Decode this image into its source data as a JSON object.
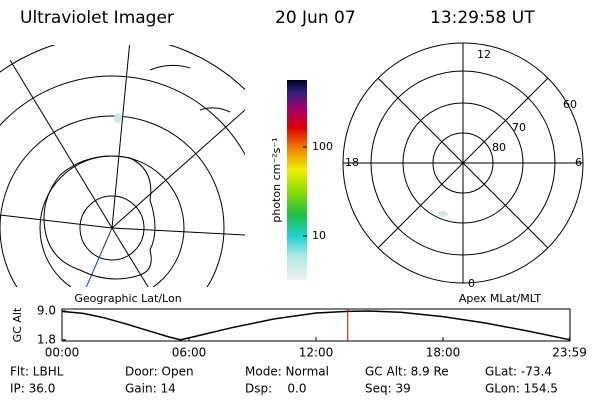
{
  "header": {
    "title": "Ultraviolet Imager",
    "date": "20 Jun 07",
    "time": "13:29:58 UT"
  },
  "left_map": {
    "label": "Geographic Lat/Lon"
  },
  "right_map": {
    "label": "Apex MLat/MLT",
    "mlt_labels": [
      "12",
      "18",
      "6",
      "0"
    ],
    "lat_labels": [
      "60",
      "70",
      "80"
    ]
  },
  "colorbar": {
    "label": "photon cm⁻²s⁻¹",
    "scale": "log",
    "ylim": [
      3.2,
      566
    ],
    "ticks": [
      10,
      100
    ]
  },
  "chart_data": {
    "type": "line",
    "ylabel": "GC Alt",
    "x": [
      0,
      1,
      2,
      3,
      4,
      5,
      5.6,
      6.5,
      8,
      10,
      12,
      13.5,
      14.5,
      16,
      18,
      20,
      22,
      24
    ],
    "values": [
      8.9,
      8.4,
      7.3,
      5.8,
      4.2,
      2.6,
      1.8,
      2.9,
      4.8,
      7.0,
      8.5,
      8.9,
      9.0,
      8.7,
      7.6,
      6.0,
      4.0,
      1.8
    ],
    "color": "#000000",
    "marker_x": 13.5,
    "marker_color": "#cc0000",
    "xlim": [
      0,
      24
    ],
    "ylim": [
      1.5,
      9.5
    ],
    "xticks": [
      {
        "value": 0,
        "label": "00:00"
      },
      {
        "value": 6,
        "label": "06:00"
      },
      {
        "value": 12,
        "label": "12:00"
      },
      {
        "value": 18,
        "label": "18:00"
      },
      {
        "value": 23.98,
        "label": "23:59"
      }
    ],
    "yticks": [
      {
        "value": 1.8,
        "label": "1.8"
      },
      {
        "value": 9,
        "label": "9.0"
      }
    ]
  },
  "footer": [
    [
      "Flt: LBHL",
      "Door: Open",
      "Mode: Normal",
      "GC Alt: 8.9 Re",
      "GLat: -73.4"
    ],
    [
      "IP: 36.0",
      "Gain: 14",
      "Dsp:    0.0",
      "Seq: 39",
      "GLon: 154.5"
    ]
  ]
}
